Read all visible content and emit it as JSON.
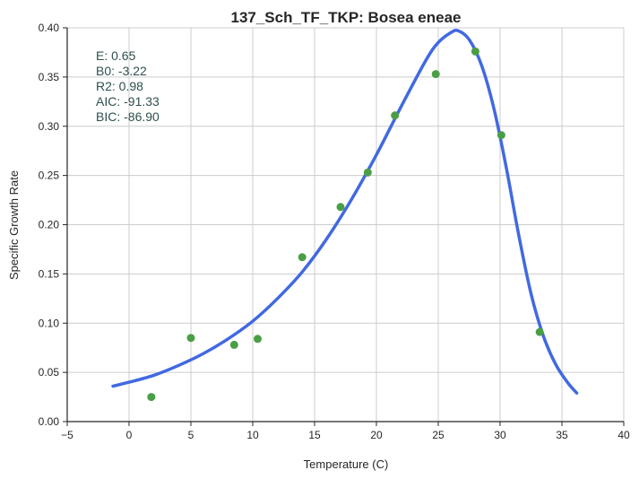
{
  "chart_data": {
    "type": "scatter",
    "title": "137_Sch_TF_TKP: Bosea eneae",
    "xlabel": "Temperature (C)",
    "ylabel": "Specific Growth Rate",
    "xlim": [
      -5,
      40
    ],
    "ylim": [
      0,
      0.4
    ],
    "xticks": [
      "−5",
      "0",
      "5",
      "10",
      "15",
      "20",
      "25",
      "30",
      "35",
      "40"
    ],
    "xtick_values": [
      -5,
      0,
      5,
      10,
      15,
      20,
      25,
      30,
      35,
      40
    ],
    "yticks": [
      "0.00",
      "0.05",
      "0.10",
      "0.15",
      "0.20",
      "0.25",
      "0.30",
      "0.35",
      "0.40"
    ],
    "ytick_values": [
      0,
      0.05,
      0.1,
      0.15,
      0.2,
      0.25,
      0.3,
      0.35,
      0.4
    ],
    "grid": true,
    "points": {
      "color": "#4a9f45",
      "x": [
        1.8,
        5.0,
        8.5,
        10.4,
        14.0,
        17.1,
        19.3,
        21.5,
        24.8,
        28.0,
        30.1,
        33.2
      ],
      "y": [
        0.025,
        0.085,
        0.078,
        0.084,
        0.167,
        0.218,
        0.253,
        0.311,
        0.353,
        0.376,
        0.291,
        0.091
      ]
    },
    "fit_curve": {
      "color": "#4169e1",
      "x": [
        -1.3,
        0,
        2,
        4,
        6,
        8,
        10,
        12,
        14,
        16,
        18,
        20,
        22,
        24,
        25,
        26,
        26.6,
        27.5,
        28.5,
        29.5,
        30.5,
        31.5,
        32.5,
        33.5,
        34.5,
        35.5,
        36.2
      ],
      "y": [
        0.036,
        0.04,
        0.047,
        0.057,
        0.069,
        0.084,
        0.102,
        0.125,
        0.152,
        0.186,
        0.226,
        0.271,
        0.32,
        0.367,
        0.385,
        0.395,
        0.397,
        0.388,
        0.362,
        0.318,
        0.258,
        0.19,
        0.13,
        0.087,
        0.058,
        0.039,
        0.029
      ]
    },
    "annotations": [
      {
        "label": "E:",
        "value": "0.65"
      },
      {
        "label": "B0:",
        "value": "-3.22"
      },
      {
        "label": "R2:",
        "value": "0.98"
      },
      {
        "label": "AIC:",
        "value": "-91.33"
      },
      {
        "label": "BIC:",
        "value": "-86.90"
      }
    ]
  }
}
